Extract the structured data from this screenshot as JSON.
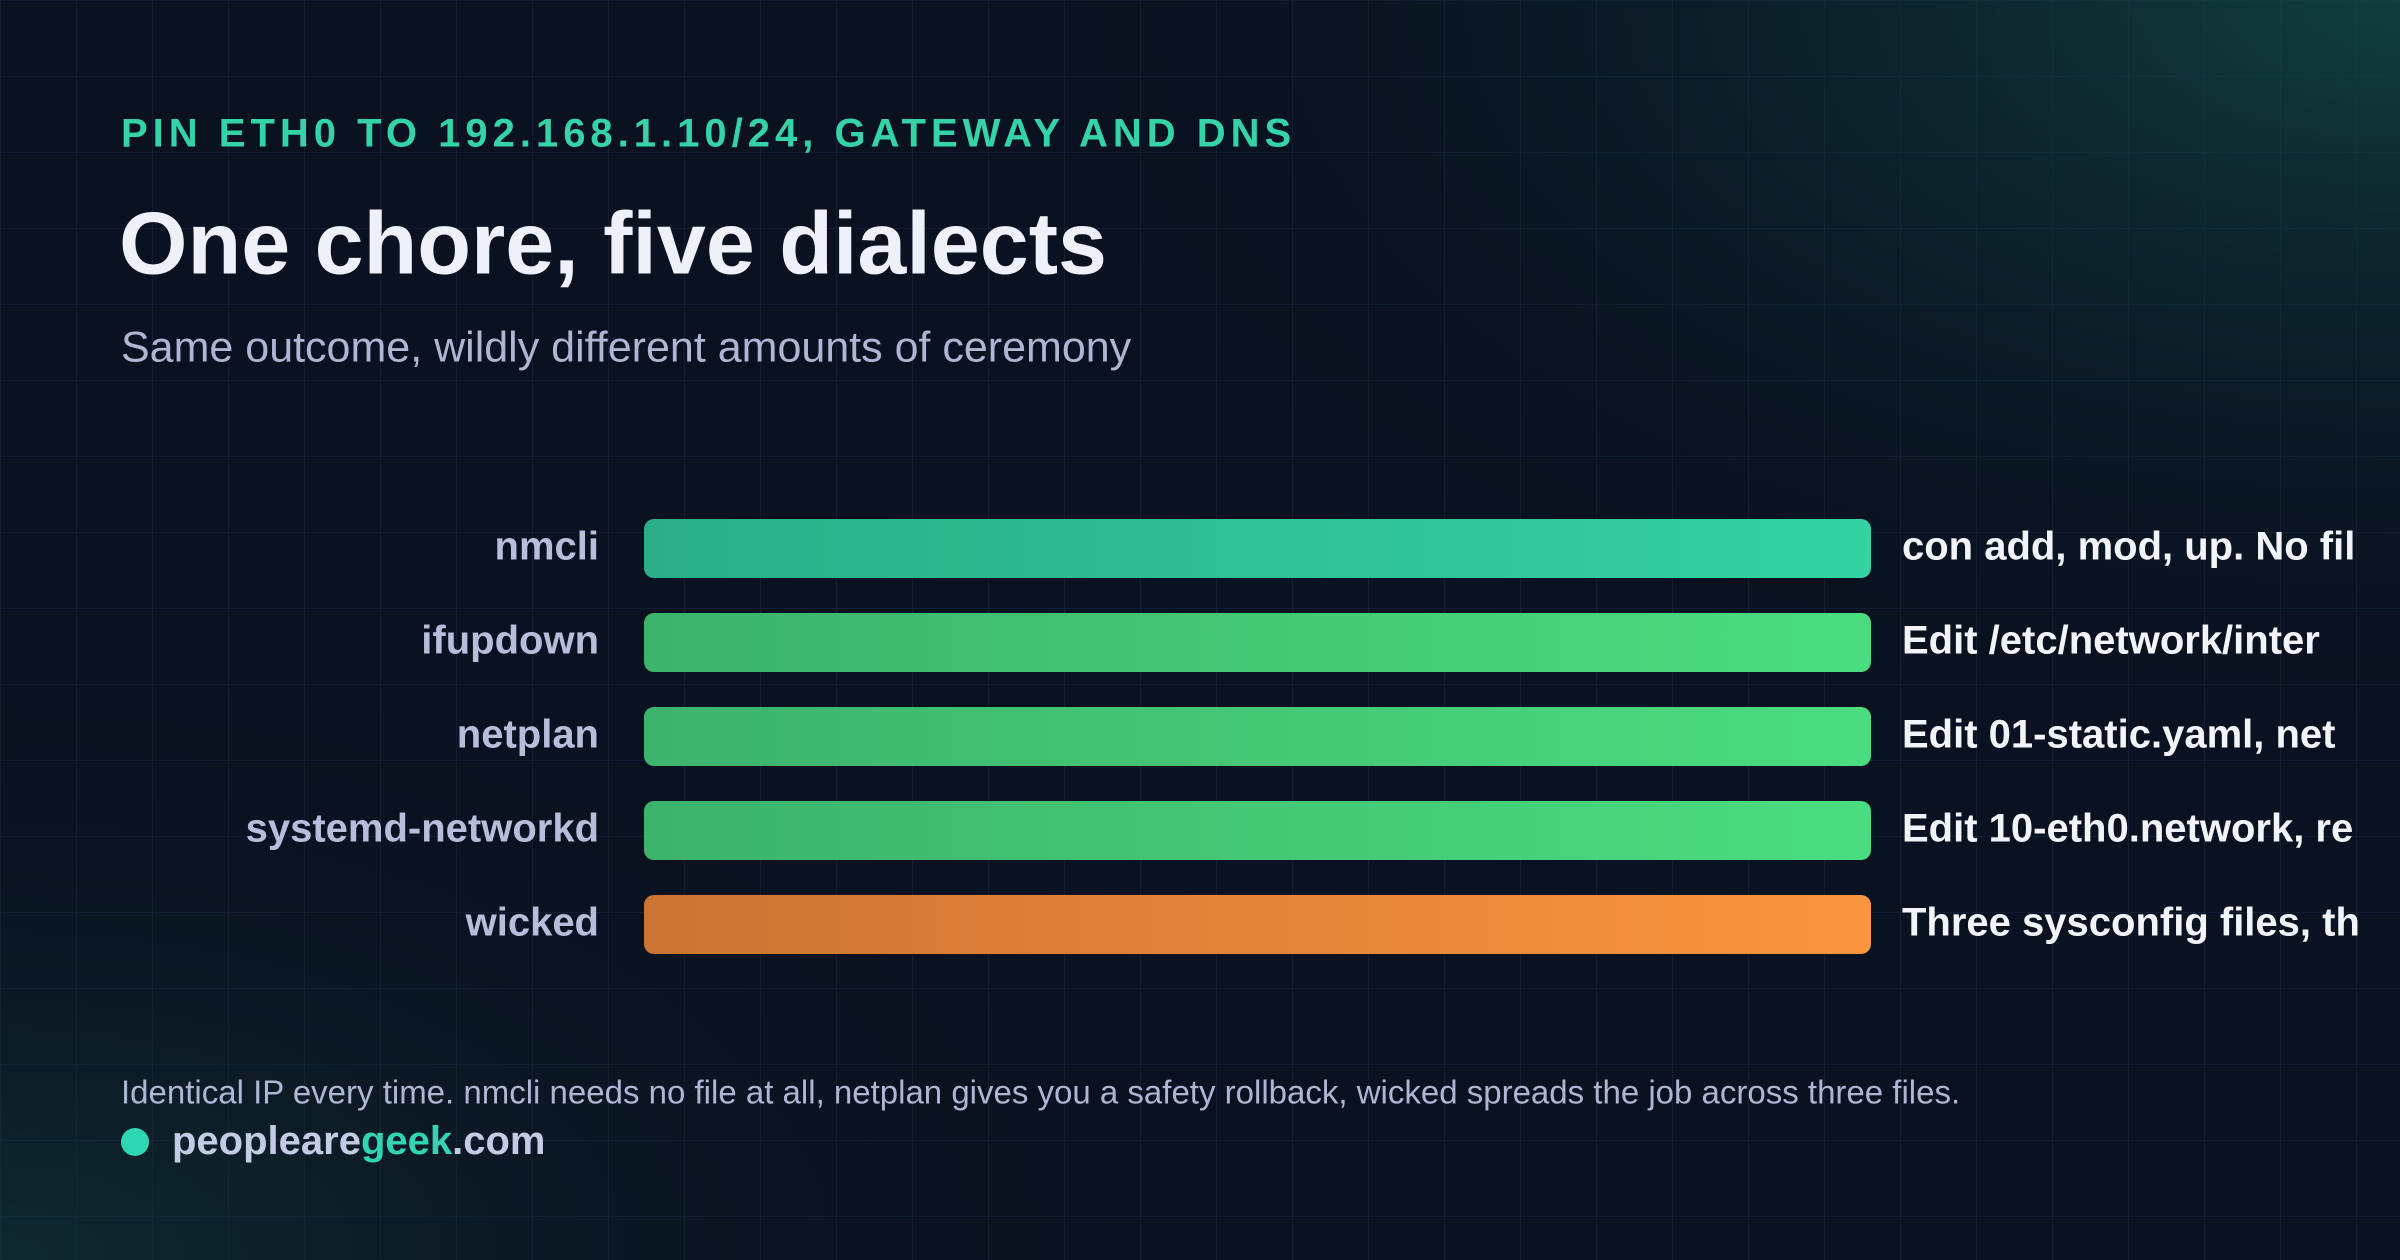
{
  "header": {
    "eyebrow": "PIN ETH0 TO 192.168.1.10/24, GATEWAY AND DNS",
    "title": "One chore, five dialects",
    "subtitle": "Same outcome, wildly different amounts of ceremony"
  },
  "rows": [
    {
      "label": "nmcli",
      "note": "con add, mod, up. No fil"
    },
    {
      "label": "ifupdown",
      "note": "Edit /etc/network/inter"
    },
    {
      "label": "netplan",
      "note": "Edit 01-static.yaml, net"
    },
    {
      "label": "systemd-networkd",
      "note": "Edit 10-eth0.network, re"
    },
    {
      "label": "wicked",
      "note": "Three sysconfig files, th"
    }
  ],
  "footer": {
    "note": "Identical IP every time. nmcli needs no file at all, netplan gives you a safety rollback, wicked spreads the job across three files.",
    "brand_a": "peopleare",
    "brand_b": "geek",
    "brand_c": ".com"
  }
}
